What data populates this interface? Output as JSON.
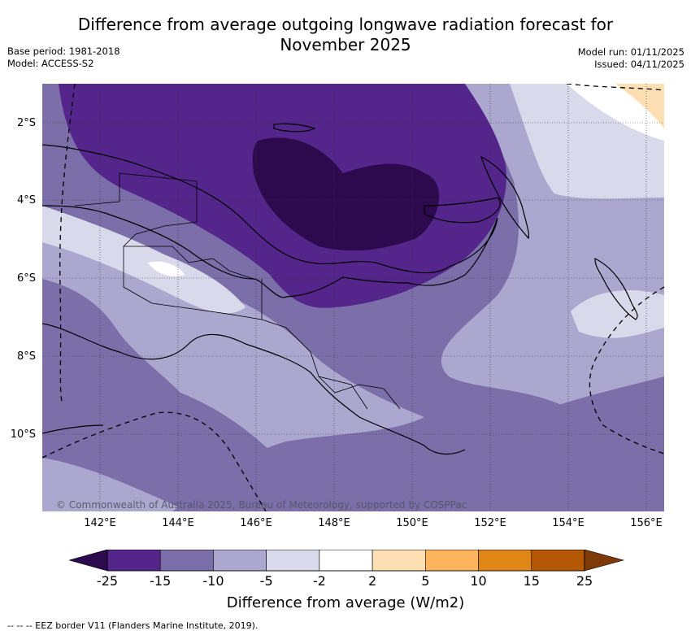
{
  "title": "Difference from average outgoing longwave radiation forecast for November 2025",
  "title_lines": [
    "Difference from average outgoing longwave radiation forecast for",
    "November 2025"
  ],
  "meta_left": {
    "base_period": "Base period: 1981-2018",
    "model": "Model: ACCESS-S2"
  },
  "meta_right": {
    "model_run": "Model run: 01/11/2025",
    "issued": "Issued: 04/11/2025"
  },
  "map": {
    "lat_ticks": [
      "2°S",
      "4°S",
      "6°S",
      "8°S",
      "10°S"
    ],
    "lon_ticks": [
      "142°E",
      "144°E",
      "146°E",
      "148°E",
      "150°E",
      "152°E",
      "154°E",
      "156°E"
    ],
    "copyright": "© Commonwealth of Australia 2025, Bureau of Meteorology, supported by COSPPac",
    "colors": {
      "lt_minus25": "#2d0a4e",
      "m25_m15": "#54258a",
      "m15_m10": "#7b6ea9",
      "m10_m5": "#aba7ce",
      "m5_m2": "#d8d9ea",
      "m2_2": "#ffffff",
      "2_5": "#fddfb3",
      "5_10": "#fcb45e",
      "10_15": "#e08617",
      "15_25": "#b55805",
      "gt_25": "#7e3a08"
    }
  },
  "colorbar": {
    "ticks": [
      "-25",
      "-15",
      "-10",
      "-5",
      "-2",
      "2",
      "5",
      "10",
      "15",
      "25"
    ],
    "colors": [
      "#54258a",
      "#7b6ea9",
      "#aba7ce",
      "#d8d9ea",
      "#ffffff",
      "#fddfb3",
      "#fcb45e",
      "#e08617",
      "#b55805"
    ],
    "low_extend_color": "#2d0a4e",
    "high_extend_color": "#7e3a08",
    "label": "Difference from average (W/m2)"
  },
  "legend": {
    "eez_label": "-- EEZ border V11 (Flanders Marine Institute, 2019)."
  }
}
